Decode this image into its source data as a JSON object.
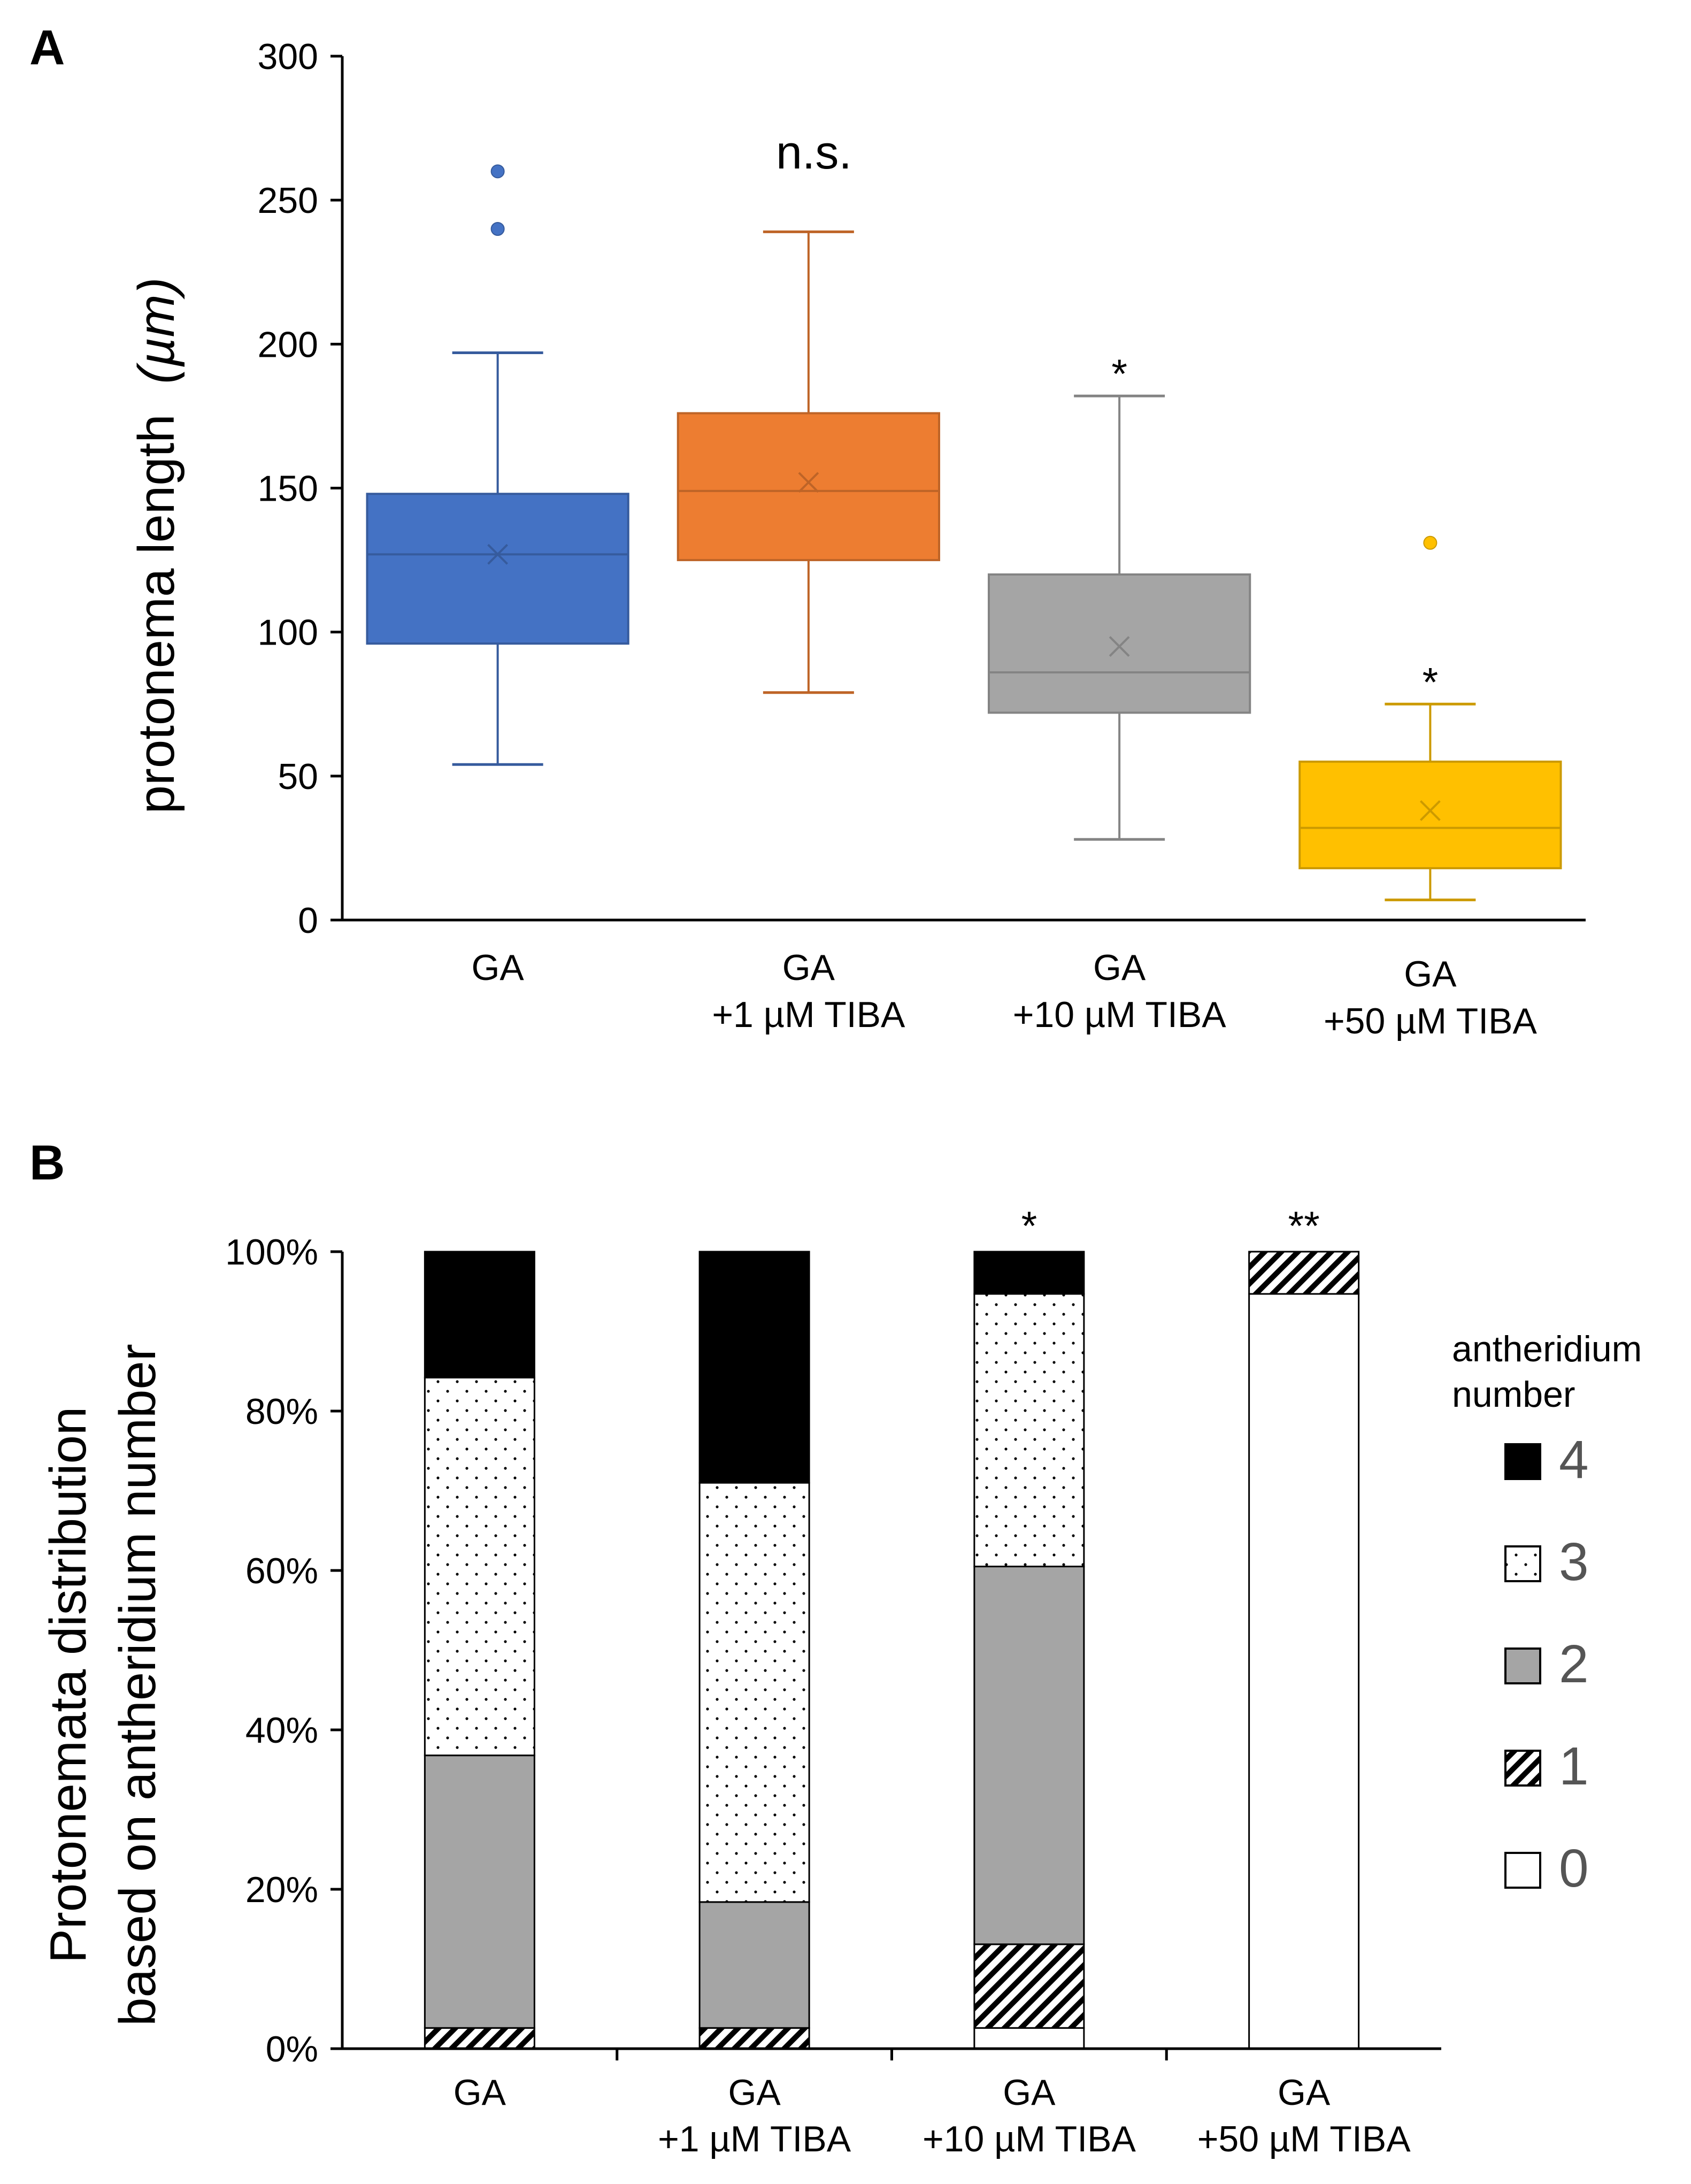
{
  "chart_data": [
    {
      "panel": "A",
      "type": "box",
      "ylabel": "protonema length",
      "ylabel_unit": "(µm)",
      "ylim": [
        0,
        300
      ],
      "yticks": [
        0,
        50,
        100,
        150,
        200,
        250,
        300
      ],
      "categories": [
        {
          "line1": "GA",
          "line2": ""
        },
        {
          "line1": "GA",
          "line2": "+1 µM TIBA"
        },
        {
          "line1": "GA",
          "line2": "+10 µM TIBA"
        },
        {
          "line1": "GA",
          "line2": "+50 µM TIBA"
        }
      ],
      "boxes": [
        {
          "color": "#4472C4",
          "whisker_low": 54,
          "q1": 96,
          "median": 127,
          "mean": 127,
          "q3": 148,
          "whisker_high": 197,
          "outliers": [
            240,
            260
          ],
          "annotation": ""
        },
        {
          "color": "#ED7D31",
          "whisker_low": 79,
          "q1": 125,
          "median": 149,
          "mean": 152,
          "q3": 176,
          "whisker_high": 239,
          "outliers": [],
          "annotation": "n.s."
        },
        {
          "color": "#A5A5A5",
          "whisker_low": 28,
          "q1": 72,
          "median": 86,
          "mean": 95,
          "q3": 120,
          "whisker_high": 182,
          "outliers": [],
          "annotation": "*"
        },
        {
          "color": "#FFC000",
          "whisker_low": 7,
          "q1": 18,
          "median": 32,
          "mean": 38,
          "q3": 55,
          "whisker_high": 75,
          "outliers": [
            131
          ],
          "annotation": "*"
        }
      ]
    },
    {
      "panel": "B",
      "type": "stacked_bar",
      "ylabel_line1": "Protonemata distribution",
      "ylabel_line2": "based on antheridium number",
      "ylim": [
        0,
        100
      ],
      "yticks": [
        "0%",
        "20%",
        "40%",
        "60%",
        "80%",
        "100%"
      ],
      "categories": [
        {
          "line1": "GA",
          "line2": ""
        },
        {
          "line1": "GA",
          "line2": "+1 µM TIBA"
        },
        {
          "line1": "GA",
          "line2": "+10 µM TIBA"
        },
        {
          "line1": "GA",
          "line2": "+50 µM TIBA"
        }
      ],
      "annotations": [
        "",
        "",
        "*",
        "**"
      ],
      "legend_title_line1": "antheridium",
      "legend_title_line2": "number",
      "series": [
        {
          "name": "0",
          "pattern": "white",
          "values": [
            0,
            0,
            2.6,
            94.7
          ]
        },
        {
          "name": "1",
          "pattern": "hatch",
          "values": [
            2.6,
            2.6,
            10.5,
            5.3
          ]
        },
        {
          "name": "2",
          "pattern": "gray",
          "values": [
            34.2,
            15.8,
            47.4,
            0
          ]
        },
        {
          "name": "3",
          "pattern": "dots",
          "values": [
            47.4,
            52.6,
            34.2,
            0
          ]
        },
        {
          "name": "4",
          "pattern": "black",
          "values": [
            15.8,
            29.0,
            5.3,
            0
          ]
        }
      ]
    }
  ],
  "panel_labels": {
    "a": "A",
    "b": "B"
  }
}
